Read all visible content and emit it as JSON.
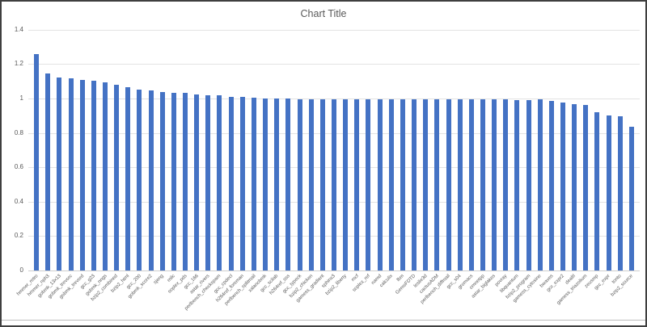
{
  "chart_data": {
    "type": "bar",
    "title": "Chart Title",
    "xlabel": "",
    "ylabel": "",
    "ylim": [
      0,
      1.4
    ],
    "grid": true,
    "legend": false,
    "bar_color": "#4472C4",
    "text_color": "#595959",
    "gridline_color": "#e3e3e3",
    "yticks": [
      {
        "label": "0",
        "value": 0
      },
      {
        "label": "0.2",
        "value": 0.2
      },
      {
        "label": "0.4",
        "value": 0.4
      },
      {
        "label": "0.6",
        "value": 0.6
      },
      {
        "label": "0.8",
        "value": 0.8
      },
      {
        "label": "1",
        "value": 1
      },
      {
        "label": "1.2",
        "value": 1.2
      },
      {
        "label": "1.4",
        "value": 1.4
      }
    ],
    "categories": [
      "hmmer_retro",
      "hmmer_nph3",
      "gobmk_13x13",
      "gobmk_trevorc",
      "gobmk_trevord",
      "gcc_g23",
      "gobmk_nngs",
      "bzip2_combined",
      "bzip2_html",
      "gcc_200",
      "gobmk_score2",
      "sjeng",
      "milc",
      "soplex_pds",
      "gcc_166",
      "astar_rivers",
      "perlbench_checkspam",
      "gcc_cpdecl",
      "h264ref_foreman",
      "perlbench_splitmail",
      "xalancbmk",
      "gcc_scilab",
      "h264ref_sss",
      "gcc_typeck",
      "bzip2_chicken",
      "gamess_gradient",
      "sphinx3",
      "bzip2_liberty",
      "mcf",
      "soplex_ref",
      "namd",
      "calculix",
      "lbm",
      "GemsFDTD",
      "leslie3d",
      "cactusADM",
      "perlbench_diffmail",
      "gcc_s04",
      "gromacs",
      "omnetpp",
      "astar_biglakes",
      "povray",
      "libquantum",
      "bzip2_program",
      "gamess_cytosine",
      "bwaves",
      "gcc_expr2",
      "dealII",
      "gamess_triazolium",
      "zeusmp",
      "gcc_expr",
      "tonto",
      "bzip2_source"
    ],
    "values": [
      1.257,
      1.145,
      1.124,
      1.118,
      1.11,
      1.101,
      1.096,
      1.079,
      1.068,
      1.053,
      1.048,
      1.037,
      1.032,
      1.031,
      1.025,
      1.018,
      1.017,
      1.01,
      1.008,
      1.003,
      1.0,
      0.999,
      0.998,
      0.996,
      0.995,
      0.995,
      0.995,
      0.995,
      0.994,
      0.994,
      0.994,
      0.994,
      0.993,
      0.993,
      0.993,
      0.993,
      0.993,
      0.994,
      0.995,
      0.993,
      0.994,
      0.995,
      0.99,
      0.99,
      0.993,
      0.988,
      0.978,
      0.969,
      0.961,
      0.919,
      0.903,
      0.897,
      0.834
    ]
  }
}
